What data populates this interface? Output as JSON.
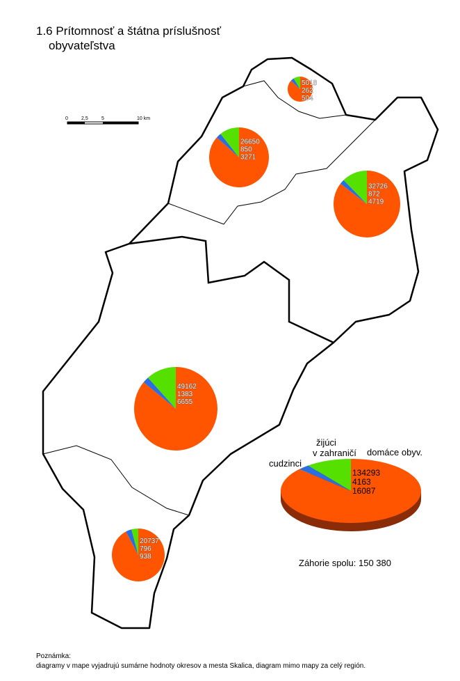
{
  "title": [
    "1.6 Prítomnosť a štátna príslušnosť",
    "obyvateľstva"
  ],
  "scale_bar": {
    "labels": [
      "0",
      "2,5",
      "5",
      "10 km"
    ]
  },
  "series": [
    {
      "name": "domáce obyv.",
      "color": "#ff5500"
    },
    {
      "name": "cudzinci",
      "color": "#2a6ee0"
    },
    {
      "name": [
        "žijúci",
        "v zahraničí"
      ],
      "color": "#55e000"
    }
  ],
  "pies": [
    {
      "values": [
        5018,
        262,
        504
      ]
    },
    {
      "values": [
        26650,
        850,
        3271
      ]
    },
    {
      "values": [
        32726,
        872,
        4719
      ]
    },
    {
      "values": [
        49162,
        1383,
        6655
      ]
    },
    {
      "values": [
        20737,
        796,
        938
      ]
    }
  ],
  "total_pie": {
    "values": [
      134293,
      4163,
      16087
    ],
    "label": "Záhorie spolu: 150 380"
  },
  "note": {
    "heading": "Poznámka:",
    "text": "diagramy v mape vyjadrujú sumárne hodnoty okresov a mesta Skalica, diagram mimo mapy za celý región."
  }
}
